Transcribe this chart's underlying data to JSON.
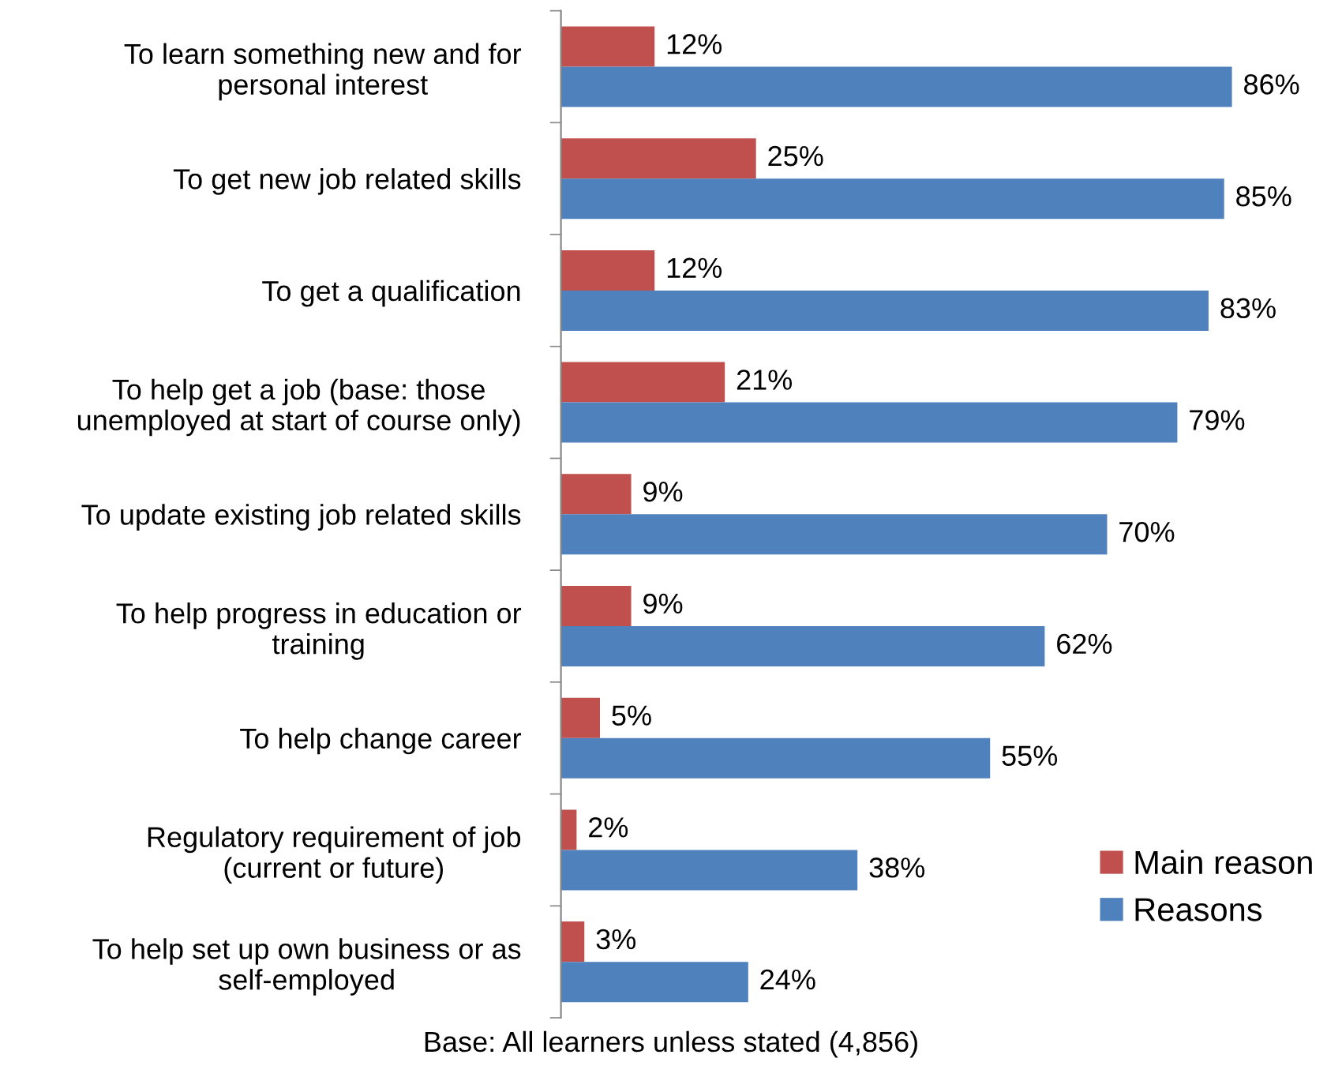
{
  "chart_data": {
    "type": "bar",
    "orientation": "horizontal",
    "categories": [
      "To learn something new and for\npersonal interest",
      "To get new job related skills",
      "To get a qualification",
      "To help get a job (base: those\nunemployed at start of course only)",
      "To update existing job related skills",
      "To help progress in education or\ntraining",
      "To help change career",
      "Regulatory requirement of job\n(current or future)",
      "To help set up own business or as\nself-employed"
    ],
    "series": [
      {
        "name": "Main reason",
        "color": "#c0504d",
        "values": [
          12,
          25,
          12,
          21,
          9,
          9,
          5,
          2,
          3
        ],
        "value_labels": [
          "12%",
          "25%",
          "12%",
          "21%",
          "9%",
          "9%",
          "5%",
          "2%",
          "3%"
        ]
      },
      {
        "name": "Reasons",
        "color": "#4f81bd",
        "values": [
          86,
          85,
          83,
          79,
          70,
          62,
          55,
          38,
          24
        ],
        "value_labels": [
          "86%",
          "85%",
          "83%",
          "79%",
          "70%",
          "62%",
          "55%",
          "38%",
          "24%"
        ]
      }
    ],
    "tick_labels": "y",
    "grid": false,
    "legend": "bottom right",
    "annotations": [
      "Base: All learners unless stated (4,856)"
    ]
  }
}
